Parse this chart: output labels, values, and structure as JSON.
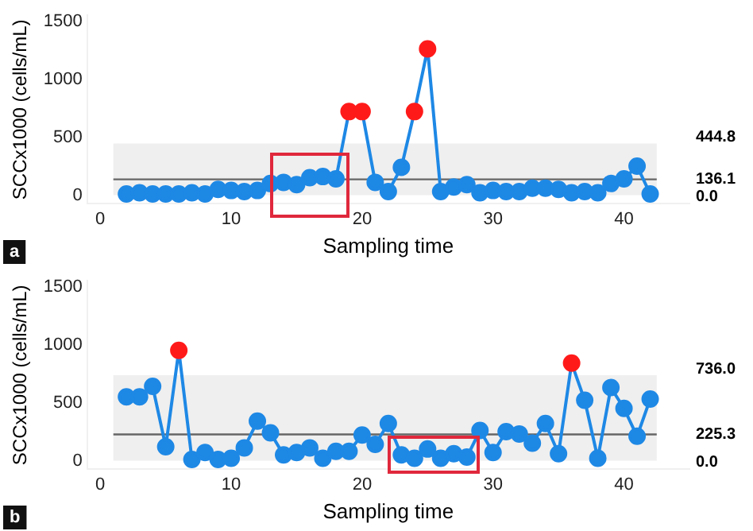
{
  "chart_data": [
    {
      "type": "line",
      "xlabel": "Sampling time",
      "ylabel": "SCCx1000 (cells/mL)",
      "x": [
        2,
        3,
        4,
        5,
        6,
        7,
        8,
        9,
        10,
        11,
        12,
        13,
        14,
        15,
        16,
        17,
        18,
        19,
        20,
        21,
        22,
        23,
        24,
        25,
        26,
        27,
        28,
        29,
        30,
        31,
        32,
        33,
        34,
        35,
        36,
        37,
        38,
        39,
        40,
        41,
        42
      ],
      "series": [
        {
          "color": "#1e88e5",
          "values": [
            10,
            20,
            10,
            10,
            10,
            20,
            10,
            50,
            40,
            30,
            40,
            100,
            110,
            90,
            150,
            160,
            140,
            720,
            720,
            110,
            30,
            240,
            720,
            1260,
            30,
            70,
            90,
            20,
            40,
            30,
            30,
            60,
            60,
            50,
            20,
            30,
            20,
            100,
            140,
            250,
            10
          ],
          "colors": [
            "#1e88e5",
            "#1e88e5",
            "#1e88e5",
            "#1e88e5",
            "#1e88e5",
            "#1e88e5",
            "#1e88e5",
            "#1e88e5",
            "#1e88e5",
            "#1e88e5",
            "#1e88e5",
            "#1e88e5",
            "#1e88e5",
            "#1e88e5",
            "#1e88e5",
            "#1e88e5",
            "#1e88e5",
            "#ff1a1a",
            "#ff1a1a",
            "#1e88e5",
            "#1e88e5",
            "#1e88e5",
            "#ff1a1a",
            "#ff1a1a",
            "#1e88e5",
            "#1e88e5",
            "#1e88e5",
            "#1e88e5",
            "#1e88e5",
            "#1e88e5",
            "#1e88e5",
            "#1e88e5",
            "#1e88e5",
            "#1e88e5",
            "#1e88e5",
            "#1e88e5",
            "#1e88e5",
            "#1e88e5",
            "#1e88e5",
            "#1e88e5",
            "#1e88e5"
          ]
        }
      ],
      "xlim": [
        -1,
        45
      ],
      "xticks": [
        0,
        10,
        20,
        30,
        40
      ],
      "ylim": [
        -75,
        1550
      ],
      "yticks": [
        0,
        500,
        1000,
        1500
      ],
      "marker": "circle",
      "line_style": "solid",
      "grid": false,
      "legend": false,
      "bands": [
        {
          "axis": "y",
          "from": 0,
          "to": 444.8,
          "color": "#efefef",
          "label": "444.8"
        }
      ],
      "ref_lines": [
        {
          "axis": "y",
          "value": 136.1,
          "label": "136.1",
          "color": "#666666"
        }
      ],
      "annotations": [
        "a",
        "0.0"
      ]
    },
    {
      "type": "line",
      "xlabel": "Sampling time",
      "ylabel": "SCCx1000 (cells/mL)",
      "x": [
        2,
        3,
        4,
        5,
        6,
        7,
        8,
        9,
        10,
        11,
        12,
        13,
        14,
        15,
        16,
        17,
        18,
        19,
        20,
        21,
        22,
        23,
        24,
        25,
        26,
        27,
        28,
        29,
        30,
        31,
        32,
        33,
        34,
        35,
        36,
        37,
        38,
        39,
        40,
        41,
        42
      ],
      "series": [
        {
          "color": "#1e88e5",
          "values": [
            550,
            550,
            640,
            120,
            950,
            10,
            70,
            10,
            20,
            110,
            340,
            240,
            50,
            70,
            110,
            20,
            80,
            80,
            220,
            140,
            320,
            50,
            20,
            100,
            20,
            60,
            30,
            260,
            70,
            250,
            230,
            150,
            320,
            60,
            840,
            520,
            20,
            630,
            450,
            210,
            530
          ],
          "colors": [
            "#1e88e5",
            "#1e88e5",
            "#1e88e5",
            "#1e88e5",
            "#ff1a1a",
            "#1e88e5",
            "#1e88e5",
            "#1e88e5",
            "#1e88e5",
            "#1e88e5",
            "#1e88e5",
            "#1e88e5",
            "#1e88e5",
            "#1e88e5",
            "#1e88e5",
            "#1e88e5",
            "#1e88e5",
            "#1e88e5",
            "#1e88e5",
            "#1e88e5",
            "#1e88e5",
            "#1e88e5",
            "#1e88e5",
            "#1e88e5",
            "#1e88e5",
            "#1e88e5",
            "#1e88e5",
            "#1e88e5",
            "#1e88e5",
            "#1e88e5",
            "#1e88e5",
            "#1e88e5",
            "#1e88e5",
            "#1e88e5",
            "#ff1a1a",
            "#1e88e5",
            "#1e88e5",
            "#1e88e5",
            "#1e88e5",
            "#1e88e5",
            "#1e88e5"
          ]
        }
      ],
      "xlim": [
        -1,
        45
      ],
      "xticks": [
        0,
        10,
        20,
        30,
        40
      ],
      "ylim": [
        -75,
        1550
      ],
      "yticks": [
        0,
        500,
        1000,
        1500
      ],
      "marker": "circle",
      "line_style": "solid",
      "grid": false,
      "legend": false,
      "bands": [
        {
          "axis": "y",
          "from": 0,
          "to": 736.0,
          "color": "#efefef",
          "label": "736.0"
        }
      ],
      "ref_lines": [
        {
          "axis": "y",
          "value": 225.3,
          "label": "225.3",
          "color": "#666666"
        }
      ],
      "annotations": [
        "b",
        "0.0"
      ]
    }
  ]
}
